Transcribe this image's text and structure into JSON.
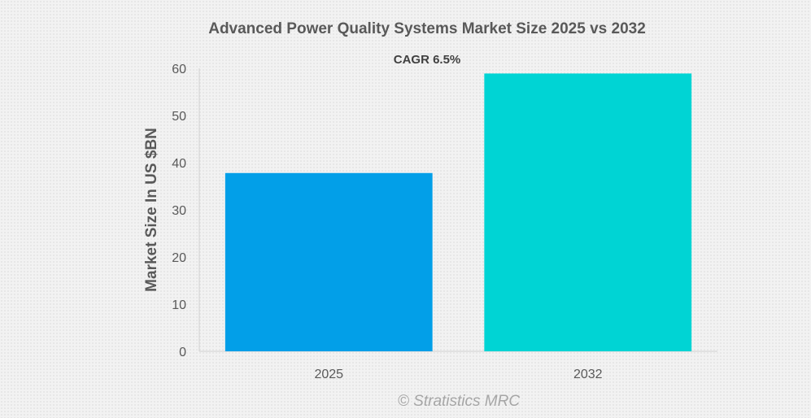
{
  "chart_data": {
    "type": "bar",
    "title": "Advanced Power Quality Systems Market Size 2025 vs 2032",
    "annotation": "CAGR 6.5%",
    "categories": [
      "2025",
      "2032"
    ],
    "values": [
      37.8,
      58.9
    ],
    "xlabel": "",
    "ylabel": "Market Size In US $BN",
    "ylim": [
      0,
      60
    ],
    "yticks": [
      "0",
      "10",
      "20",
      "30",
      "40",
      "50",
      "60"
    ],
    "grid": false,
    "colors": [
      "#029fe8",
      "#00d4d4"
    ],
    "source": "© Stratistics MRC"
  }
}
